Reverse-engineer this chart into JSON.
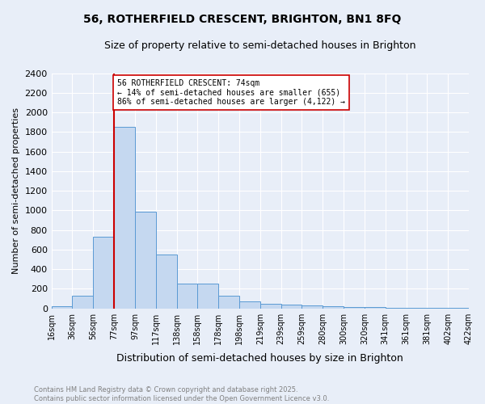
{
  "title1": "56, ROTHERFIELD CRESCENT, BRIGHTON, BN1 8FQ",
  "title2": "Size of property relative to semi-detached houses in Brighton",
  "xlabel": "Distribution of semi-detached houses by size in Brighton",
  "ylabel": "Number of semi-detached properties",
  "footer": "Contains HM Land Registry data © Crown copyright and database right 2025.\nContains public sector information licensed under the Open Government Licence v3.0.",
  "bin_labels": [
    "16sqm",
    "36sqm",
    "56sqm",
    "77sqm",
    "97sqm",
    "117sqm",
    "138sqm",
    "158sqm",
    "178sqm",
    "198sqm",
    "219sqm",
    "239sqm",
    "259sqm",
    "280sqm",
    "300sqm",
    "320sqm",
    "341sqm",
    "361sqm",
    "381sqm",
    "402sqm",
    "422sqm"
  ],
  "bar_values": [
    20,
    130,
    730,
    1850,
    990,
    550,
    250,
    250,
    130,
    75,
    50,
    35,
    30,
    20,
    15,
    10,
    8,
    5,
    3,
    3
  ],
  "bar_color": "#c5d8f0",
  "bar_edge_color": "#5a9ad4",
  "redline_bin_index": 3,
  "redline_color": "#cc0000",
  "annotation_text": "56 ROTHERFIELD CRESCENT: 74sqm\n← 14% of semi-detached houses are smaller (655)\n86% of semi-detached houses are larger (4,122) →",
  "annotation_box_color": "#ffffff",
  "annotation_box_edge": "#cc0000",
  "ylim": [
    0,
    2400
  ],
  "yticks": [
    0,
    200,
    400,
    600,
    800,
    1000,
    1200,
    1400,
    1600,
    1800,
    2000,
    2200,
    2400
  ],
  "bg_color": "#e8eef8",
  "plot_bg_color": "#e8eef8",
  "grid_color": "#ffffff",
  "title_fontsize": 10,
  "subtitle_fontsize": 9,
  "footer_color": "#808080"
}
